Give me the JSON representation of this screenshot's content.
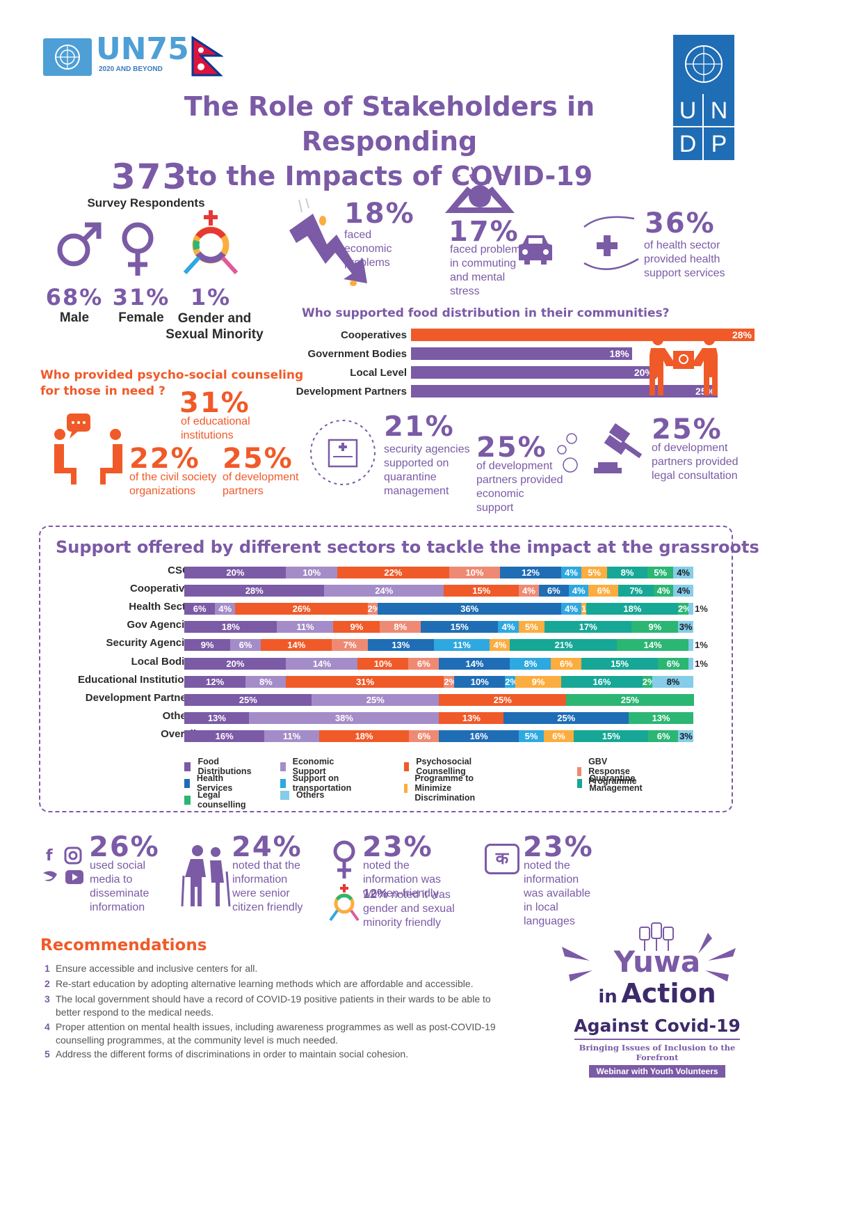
{
  "header": {
    "un75": "UN75",
    "un75_sub": "2020 AND BEYOND",
    "title_line1": "The Role of Stakeholders in Responding",
    "title_line2": "to the Impacts of COVID-19",
    "undp": [
      "U",
      "N",
      "D",
      "P"
    ]
  },
  "respondents": {
    "count": "373",
    "label": "Survey Respondents",
    "groups": [
      {
        "pct": "68%",
        "label": "Male"
      },
      {
        "pct": "31%",
        "label": "Female"
      },
      {
        "pct": "1%",
        "label": "Gender and Sexual Minority"
      }
    ]
  },
  "impacts": [
    {
      "pct": "18%",
      "text": "faced economic problems"
    },
    {
      "pct": "17%",
      "text": "faced problems in commuting and mental stress"
    },
    {
      "pct": "36%",
      "text": "of health sector provided health support services"
    }
  ],
  "food": {
    "heading": "Who supported food distribution in their communities?",
    "bars": [
      {
        "label": "Cooperatives",
        "value": 28,
        "text": "28%",
        "color": "#f05a28"
      },
      {
        "label": "Government Bodies",
        "value": 18,
        "text": "18%",
        "color": "#7b5aa6"
      },
      {
        "label": "Local Level",
        "value": 20,
        "text": "20%",
        "color": "#7b5aa6"
      },
      {
        "label": "Development Partners",
        "value": 25,
        "text": "25%",
        "color": "#7b5aa6"
      }
    ]
  },
  "psycho": {
    "heading_line1": "Who provided psycho-social counseling",
    "heading_line2": "for those in need ?",
    "items": [
      {
        "pct": "31%",
        "text": "of educational institutions"
      },
      {
        "pct": "22%",
        "text": "of the civil society organizations"
      },
      {
        "pct": "25%",
        "text": "of development partners"
      }
    ]
  },
  "support_stats": [
    {
      "pct": "21%",
      "text": "security agencies supported on quarantine management"
    },
    {
      "pct": "25%",
      "text": "of development partners provided economic support"
    },
    {
      "pct": "25%",
      "text": "of development partners provided legal consultation"
    }
  ],
  "chart_data": {
    "type": "bar",
    "stacked": true,
    "orientation": "horizontal",
    "title": "Support offered by different sectors to tackle the impact at the grassroots",
    "categories": [
      "CSOs",
      "Cooperatives",
      "Health Sector",
      "Gov Agencies",
      "Security Agencies",
      "Local Bodies",
      "Educational Institutions",
      "Development Partners",
      "Others",
      "Overall"
    ],
    "series": [
      {
        "name": "Food Distributions",
        "color": "#7b5aa6",
        "values": [
          20,
          28,
          6,
          18,
          9,
          20,
          12,
          25,
          13,
          16
        ]
      },
      {
        "name": "Economic Support",
        "color": "#a48cc8",
        "values": [
          10,
          24,
          4,
          11,
          6,
          14,
          8,
          25,
          38,
          11
        ]
      },
      {
        "name": "Psychosocial Counselling",
        "color": "#f05a28",
        "values": [
          22,
          15,
          26,
          9,
          14,
          10,
          31,
          25,
          13,
          18
        ]
      },
      {
        "name": "GBV Response Programme",
        "color": "#ee8a73",
        "values": [
          10,
          4,
          2,
          8,
          7,
          6,
          2,
          0,
          0,
          6
        ]
      },
      {
        "name": "Health Services",
        "color": "#1f6db5",
        "values": [
          12,
          6,
          36,
          15,
          13,
          14,
          10,
          0,
          25,
          16
        ]
      },
      {
        "name": "Support on transportation",
        "color": "#2ea8e0",
        "values": [
          4,
          4,
          4,
          4,
          11,
          8,
          2,
          0,
          0,
          5
        ]
      },
      {
        "name": "Programme to Minimize Discrimination",
        "color": "#fbad3f",
        "values": [
          5,
          6,
          1,
          5,
          4,
          6,
          9,
          0,
          0,
          6
        ]
      },
      {
        "name": "Quarantine Management",
        "color": "#16a796",
        "values": [
          8,
          7,
          18,
          17,
          21,
          15,
          16,
          0,
          0,
          15
        ]
      },
      {
        "name": "Legal counselling",
        "color": "#2bb673",
        "values": [
          5,
          4,
          2,
          9,
          14,
          6,
          2,
          25,
          13,
          6
        ]
      },
      {
        "name": "Others",
        "color": "#85cde9",
        "values": [
          4,
          4,
          1,
          3,
          1,
          1,
          8,
          0,
          0,
          3
        ]
      }
    ]
  },
  "info": [
    {
      "pct": "26%",
      "text": "used social media to disseminate information"
    },
    {
      "pct": "24%",
      "text": "noted that the information were senior citizen friendly"
    },
    {
      "pct": "23%",
      "text": "noted the information was women-friendly",
      "extra_pct": "12%",
      "extra_text": "noted it was gender and sexual minority friendly"
    },
    {
      "pct": "23%",
      "text": "noted the information was available in local languages",
      "glyph": "क"
    }
  ],
  "recommendations": {
    "heading": "Recommendations",
    "items": [
      {
        "num": "1",
        "text": "Ensure accessible and inclusive centers for all."
      },
      {
        "num": "2",
        "text": "Re-start education by adopting alternative learning methods which are affordable and accessible."
      },
      {
        "num": "3",
        "text": "The local government should have a record of COVID-19 positive patients in their wards to be able to better respond to the medical needs."
      },
      {
        "num": "4",
        "text": "Proper attention on mental health issues, including awareness programmes as well as post-COVID-19 counselling programmes, at the community level is much needed."
      },
      {
        "num": "5",
        "text": "Address the different forms of discriminations in order to maintain social cohesion."
      }
    ]
  },
  "yuwa": {
    "line1": "Yuwa",
    "line2a": "in",
    "line2b": "Action",
    "line3": "Against Covid-19",
    "tagline": "Bringing Issues of Inclusion to the Forefront",
    "badge": "Webinar with Youth Volunteers"
  }
}
